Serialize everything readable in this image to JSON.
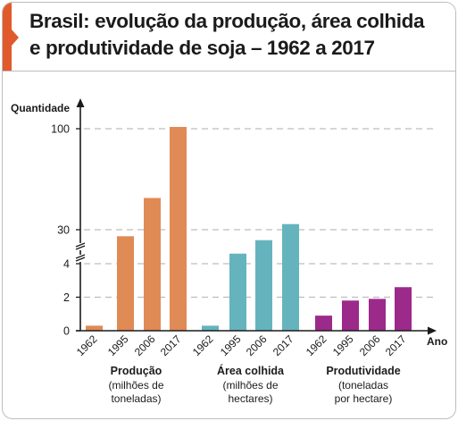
{
  "title_lines": [
    "Brasil: evolução da produção, área colhida",
    "e produtividade de soja – 1962 a 2017"
  ],
  "colors": {
    "accent": "#e05a2b",
    "producao": "#e08a55",
    "area": "#65b4bd",
    "produtividade": "#9c2a8a",
    "grid": "#bdbdbd",
    "axis": "#1b1b1b"
  },
  "chart_data": {
    "type": "bar",
    "ylabel": "Quantidade",
    "xlabel": "Ano",
    "y_ticks": [
      "0",
      "2",
      "4",
      "30",
      "100"
    ],
    "y_axis_breaks": [
      "between 4 and 30",
      "between 30 and 100"
    ],
    "grid": true,
    "groups": [
      {
        "key": "producao",
        "label": "Produção",
        "sublabel_lines": [
          "(milhões de",
          "toneladas)"
        ],
        "categories": [
          "1962",
          "1995",
          "2006",
          "2017"
        ],
        "values": [
          0.3,
          25,
          52,
          114
        ]
      },
      {
        "key": "area",
        "label": "Área colhida",
        "sublabel_lines": [
          "(milhões de",
          "hectares)"
        ],
        "categories": [
          "1962",
          "1995",
          "2006",
          "2017"
        ],
        "values": [
          0.3,
          11.7,
          22,
          33.9
        ]
      },
      {
        "key": "produtividade",
        "label": "Produtividade",
        "sublabel_lines": [
          "(toneladas",
          "por hectare)"
        ],
        "categories": [
          "1962",
          "1995",
          "2006",
          "2017"
        ],
        "values": [
          0.9,
          1.8,
          1.9,
          2.6
        ]
      }
    ]
  }
}
